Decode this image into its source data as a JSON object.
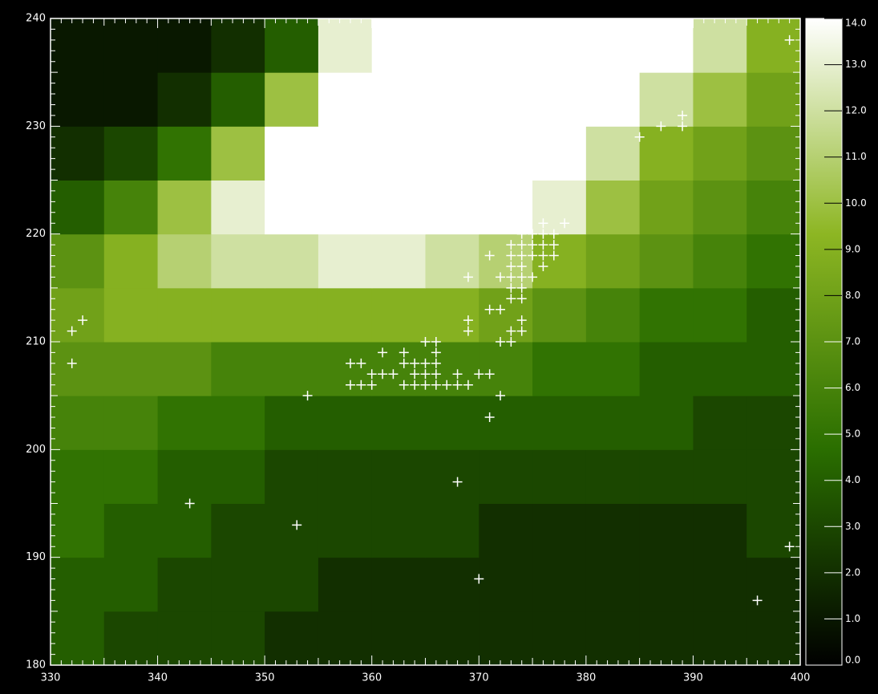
{
  "chart_data": {
    "type": "heatmap",
    "xlim": [
      330,
      400
    ],
    "ylim": [
      180,
      240
    ],
    "xticks": [
      330,
      340,
      350,
      360,
      370,
      380,
      390,
      400
    ],
    "yticks": [
      180,
      190,
      200,
      210,
      220,
      230,
      240
    ],
    "minor_ticks_per_major": 10,
    "x_edges": [
      330,
      335,
      340,
      345,
      350,
      355,
      360,
      365,
      370,
      375,
      380,
      385,
      390,
      395,
      400
    ],
    "y_edges": [
      180,
      185,
      190,
      195,
      200,
      205,
      210,
      215,
      220,
      225,
      230,
      235,
      240
    ],
    "z": [
      [
        4,
        3,
        3,
        3,
        2,
        2,
        2,
        2,
        2,
        2,
        2,
        2,
        2,
        2
      ],
      [
        4,
        4,
        3,
        3,
        3,
        2,
        2,
        2,
        2,
        2,
        2,
        2,
        2,
        2
      ],
      [
        5,
        4,
        4,
        3,
        3,
        3,
        3,
        3,
        2,
        2,
        2,
        2,
        2,
        3
      ],
      [
        5,
        5,
        4,
        4,
        3,
        3,
        3,
        3,
        3,
        3,
        3,
        3,
        3,
        3
      ],
      [
        6,
        6,
        5,
        5,
        4,
        4,
        4,
        4,
        4,
        4,
        4,
        4,
        3,
        3
      ],
      [
        7,
        7,
        7,
        6,
        6,
        6,
        6,
        6,
        6,
        5,
        5,
        4,
        4,
        4
      ],
      [
        8,
        9,
        9,
        9,
        9,
        9,
        9,
        9,
        8,
        7,
        6,
        5,
        5,
        4
      ],
      [
        7,
        9,
        11,
        12,
        12,
        13,
        13,
        12,
        11,
        9,
        8,
        7,
        6,
        5
      ],
      [
        4,
        6,
        10,
        13,
        14,
        14,
        14,
        14,
        14,
        13,
        10,
        8,
        7,
        6
      ],
      [
        2,
        3,
        5,
        10,
        14,
        14,
        14,
        14,
        14,
        14,
        12,
        9,
        8,
        7
      ],
      [
        1,
        1,
        2,
        4,
        10,
        14,
        14,
        14,
        14,
        14,
        14,
        12,
        10,
        8
      ],
      [
        1,
        1,
        1,
        2,
        4,
        13,
        14,
        14,
        14,
        14,
        14,
        14,
        12,
        9
      ]
    ],
    "zlim": [
      0,
      14
    ],
    "colorscale": [
      "#000000",
      "#2a6e00",
      "#8db623",
      "#ffffff"
    ],
    "zticks": [
      {
        "value": 0,
        "label": "0.0"
      },
      {
        "value": 1,
        "label": "1.0"
      },
      {
        "value": 2,
        "label": "2.0"
      },
      {
        "value": 3,
        "label": "3.0"
      },
      {
        "value": 4,
        "label": "4.0"
      },
      {
        "value": 5,
        "label": "5.0"
      },
      {
        "value": 6,
        "label": "6.0"
      },
      {
        "value": 7,
        "label": "7.0"
      },
      {
        "value": 8,
        "label": "8.0"
      },
      {
        "value": 9,
        "label": "9.0"
      },
      {
        "value": 10,
        "label": "10.0"
      },
      {
        "value": 11,
        "label": "11.0"
      },
      {
        "value": 12,
        "label": "12.0"
      },
      {
        "value": 13,
        "label": "13.0"
      },
      {
        "value": 14,
        "label": "14.0"
      }
    ],
    "scatter": {
      "color": "#ffffff",
      "x": [
        332,
        333,
        332,
        354,
        343,
        353,
        358,
        359,
        358,
        359,
        360,
        360,
        361,
        361,
        362,
        363,
        363,
        364,
        363,
        364,
        364,
        365,
        365,
        366,
        366,
        365,
        365,
        366,
        366,
        366,
        367,
        368,
        368,
        369,
        369,
        369,
        369,
        370,
        371,
        371,
        372,
        368,
        370,
        371,
        372,
        371,
        372,
        372,
        373,
        373,
        374,
        374,
        373,
        374,
        373,
        374,
        373,
        374,
        375,
        373,
        374,
        373,
        374,
        375,
        373,
        374,
        375,
        374,
        375,
        376,
        376,
        377,
        376,
        377,
        376,
        377,
        376,
        378,
        385,
        387,
        389,
        389,
        399,
        399,
        396
      ],
      "y": [
        211,
        212,
        208,
        205,
        195,
        193,
        208,
        208,
        206,
        206,
        206,
        207,
        209,
        207,
        207,
        209,
        208,
        207,
        206,
        206,
        208,
        208,
        210,
        210,
        209,
        207,
        206,
        206,
        207,
        208,
        206,
        206,
        207,
        206,
        211,
        212,
        216,
        207,
        207,
        203,
        205,
        197,
        188,
        213,
        213,
        218,
        216,
        210,
        210,
        211,
        211,
        212,
        214,
        214,
        215,
        215,
        216,
        216,
        216,
        217,
        217,
        218,
        218,
        218,
        219,
        219,
        219,
        220,
        220,
        221,
        220,
        220,
        219,
        219,
        218,
        218,
        217,
        221,
        229,
        230,
        230,
        231,
        238,
        191,
        186
      ]
    }
  }
}
